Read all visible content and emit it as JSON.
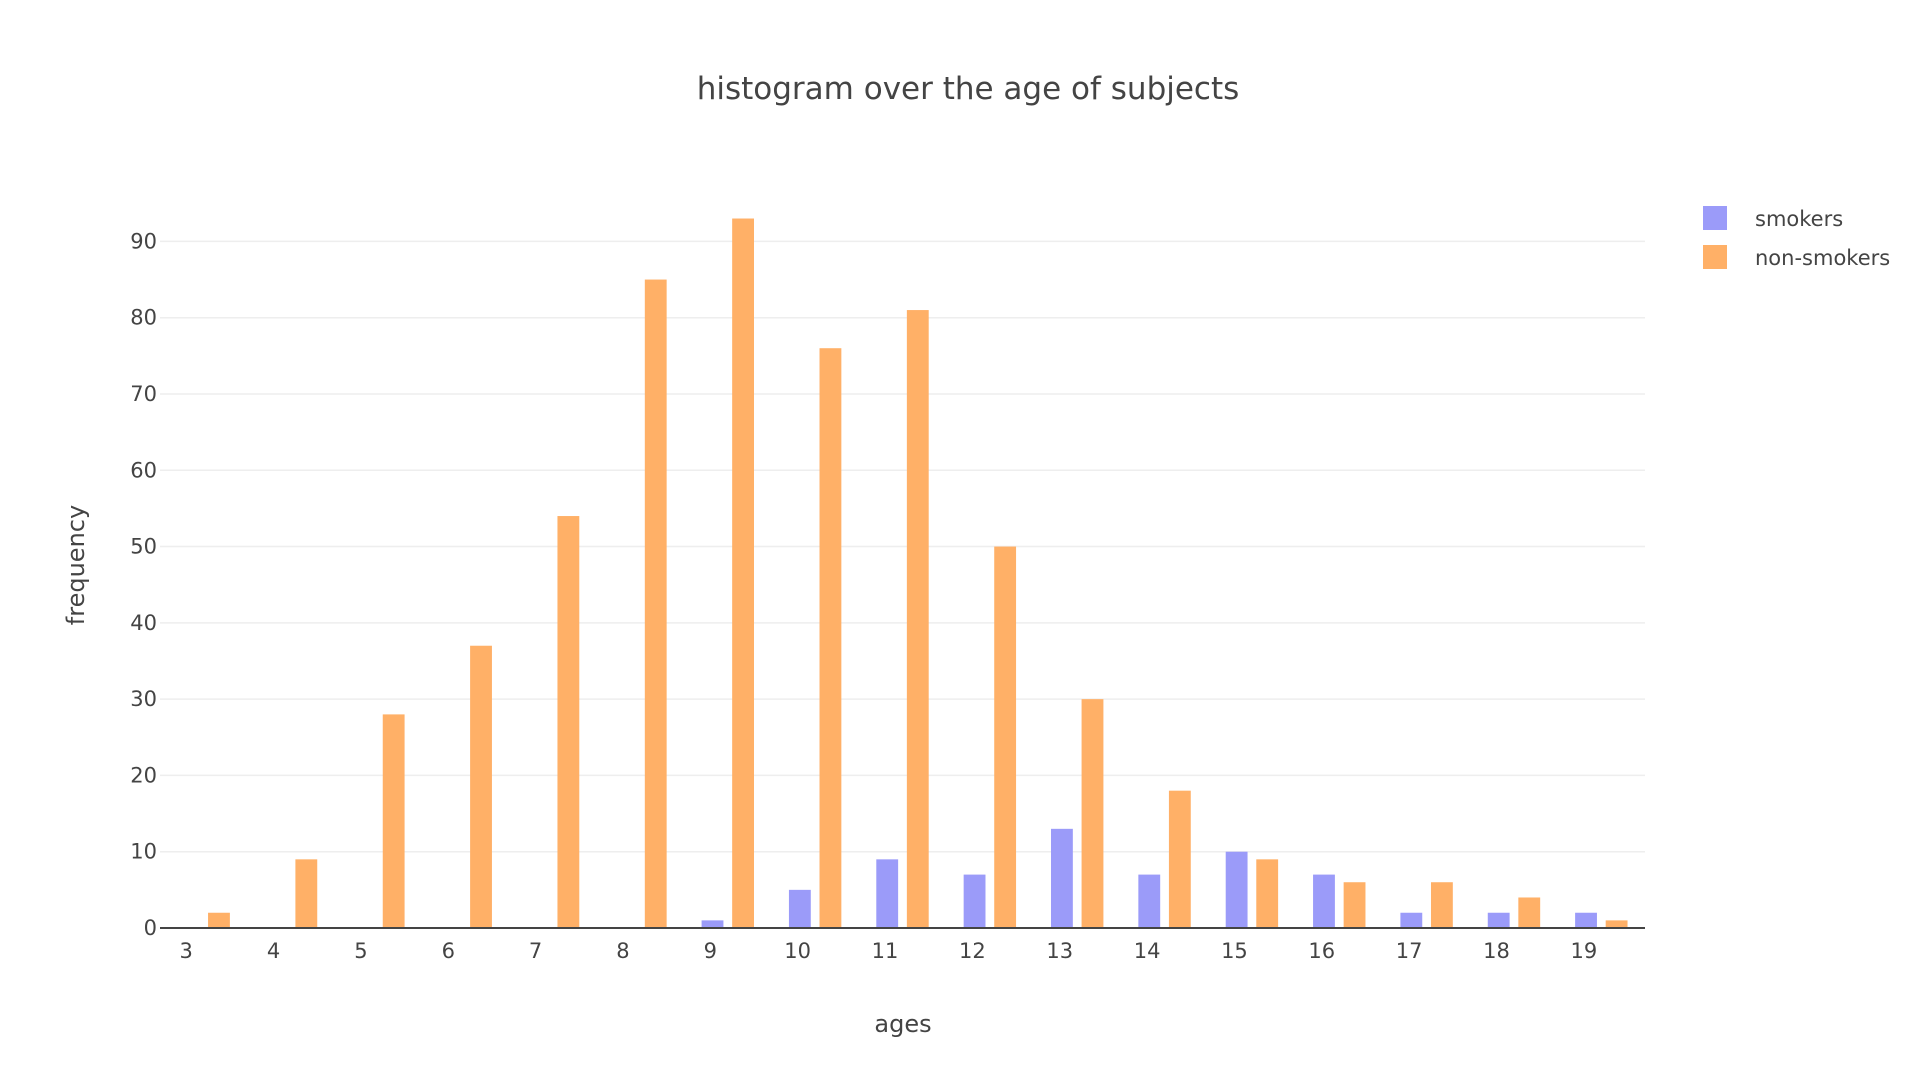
{
  "chart_data": {
    "type": "bar",
    "title": "histogram over the age of subjects",
    "xlabel": "ages",
    "ylabel": "frequency",
    "categories": [
      "3",
      "4",
      "5",
      "6",
      "7",
      "8",
      "9",
      "10",
      "11",
      "12",
      "13",
      "14",
      "15",
      "16",
      "17",
      "18",
      "19"
    ],
    "series": [
      {
        "name": "smokers",
        "color": "#9b9bf9",
        "values": [
          0,
          0,
          0,
          0,
          0,
          0,
          1,
          5,
          9,
          7,
          13,
          7,
          10,
          7,
          2,
          2,
          2
        ]
      },
      {
        "name": "non-smokers",
        "color": "#ffb067",
        "values": [
          2,
          9,
          28,
          37,
          54,
          85,
          93,
          76,
          81,
          50,
          30,
          18,
          9,
          6,
          6,
          4,
          1
        ]
      }
    ],
    "ylim": [
      0,
      97
    ],
    "yticks": [
      0,
      10,
      20,
      30,
      40,
      50,
      60,
      70,
      80,
      90
    ],
    "grid": true,
    "legend_position": "top-right"
  }
}
